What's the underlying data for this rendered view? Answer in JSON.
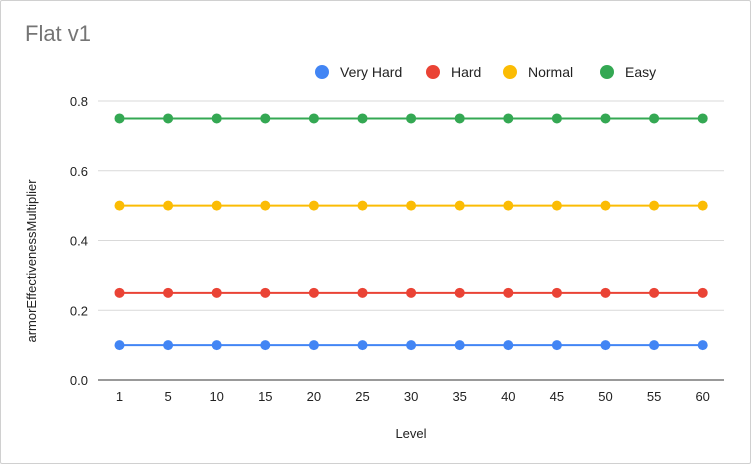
{
  "chart_data": {
    "type": "line",
    "title": "Flat v1",
    "xlabel": "Level",
    "ylabel": "armorEffectivenessMultiplier",
    "categories": [
      "1",
      "5",
      "10",
      "15",
      "20",
      "25",
      "30",
      "35",
      "40",
      "45",
      "50",
      "55",
      "60"
    ],
    "ylim": [
      0,
      0.8
    ],
    "yticks": [
      "0.0",
      "0.2",
      "0.4",
      "0.6",
      "0.8"
    ],
    "yticks_values": [
      0,
      0.2,
      0.4,
      0.6,
      0.8
    ],
    "legend_position": "top",
    "grid": true,
    "series": [
      {
        "name": "Very Hard",
        "color": "#4285f4",
        "values": [
          0.1,
          0.1,
          0.1,
          0.1,
          0.1,
          0.1,
          0.1,
          0.1,
          0.1,
          0.1,
          0.1,
          0.1,
          0.1
        ]
      },
      {
        "name": "Hard",
        "color": "#ea4335",
        "values": [
          0.25,
          0.25,
          0.25,
          0.25,
          0.25,
          0.25,
          0.25,
          0.25,
          0.25,
          0.25,
          0.25,
          0.25,
          0.25
        ]
      },
      {
        "name": "Normal",
        "color": "#fbbc04",
        "values": [
          0.5,
          0.5,
          0.5,
          0.5,
          0.5,
          0.5,
          0.5,
          0.5,
          0.5,
          0.5,
          0.5,
          0.5,
          0.5
        ]
      },
      {
        "name": "Easy",
        "color": "#34a853",
        "values": [
          0.75,
          0.75,
          0.75,
          0.75,
          0.75,
          0.75,
          0.75,
          0.75,
          0.75,
          0.75,
          0.75,
          0.75,
          0.75
        ]
      }
    ]
  }
}
